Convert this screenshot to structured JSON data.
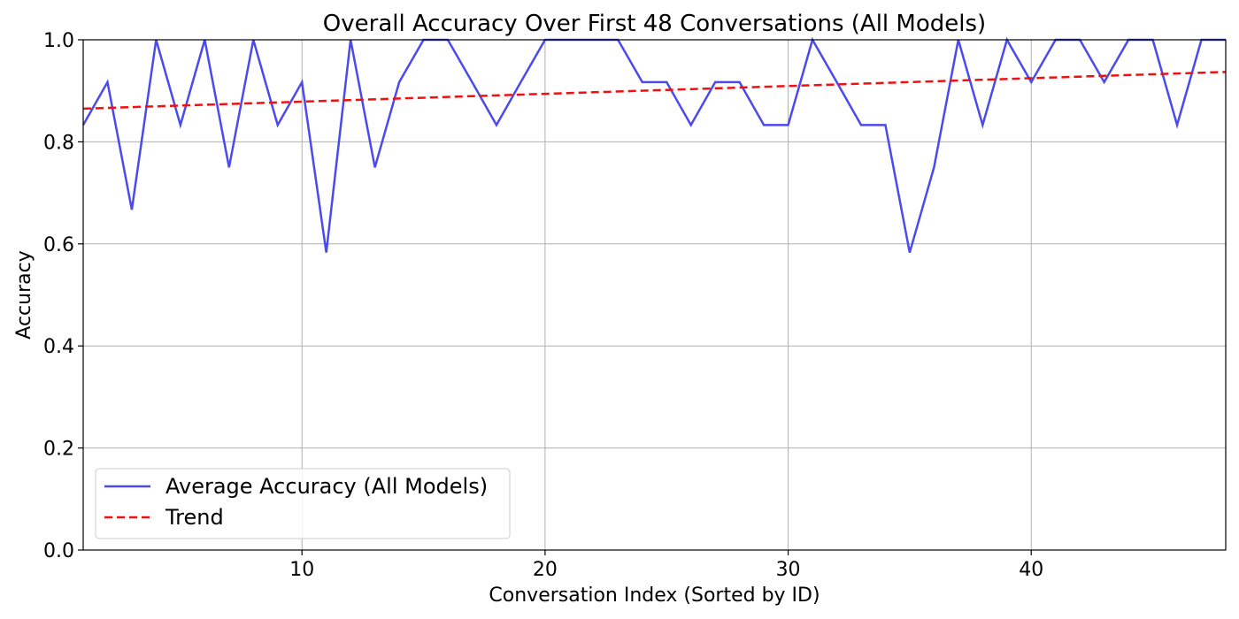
{
  "chart_data": {
    "type": "line",
    "title": "Overall Accuracy Over First 48 Conversations (All Models)",
    "xlabel": "Conversation Index (Sorted by ID)",
    "ylabel": "Accuracy",
    "xlim": [
      1,
      48
    ],
    "ylim": [
      0,
      1
    ],
    "x_ticks": [
      10,
      20,
      30,
      40
    ],
    "y_ticks": [
      0.0,
      0.2,
      0.4,
      0.6,
      0.8,
      1.0
    ],
    "y_tick_labels": [
      "0.0",
      "0.2",
      "0.4",
      "0.6",
      "0.8",
      "1.0"
    ],
    "grid": true,
    "legend_position": "lower-left",
    "x": [
      1,
      2,
      3,
      4,
      5,
      6,
      7,
      8,
      9,
      10,
      11,
      12,
      13,
      14,
      15,
      16,
      17,
      18,
      19,
      20,
      21,
      22,
      23,
      24,
      25,
      26,
      27,
      28,
      29,
      30,
      31,
      32,
      33,
      34,
      35,
      36,
      37,
      38,
      39,
      40,
      41,
      42,
      43,
      44,
      45,
      46,
      47,
      48
    ],
    "series": [
      {
        "name": "Average Accuracy (All Models)",
        "style": "solid",
        "color": "#4a4aee",
        "values": [
          0.833,
          0.917,
          0.667,
          1.0,
          0.833,
          1.0,
          0.75,
          1.0,
          0.833,
          0.917,
          0.583,
          1.0,
          0.75,
          0.917,
          1.0,
          1.0,
          0.917,
          0.833,
          0.917,
          1.0,
          1.0,
          1.0,
          1.0,
          0.917,
          0.917,
          0.833,
          0.917,
          0.917,
          0.833,
          0.833,
          1.0,
          0.917,
          0.833,
          0.833,
          0.583,
          0.75,
          1.0,
          0.833,
          1.0,
          0.917,
          1.0,
          1.0,
          0.917,
          1.0,
          1.0,
          0.833,
          1.0,
          1.0
        ]
      },
      {
        "name": "Trend",
        "style": "dashed",
        "color": "#ee1111",
        "trend_start": [
          1,
          0.865
        ],
        "trend_end": [
          48,
          0.937
        ]
      }
    ]
  }
}
